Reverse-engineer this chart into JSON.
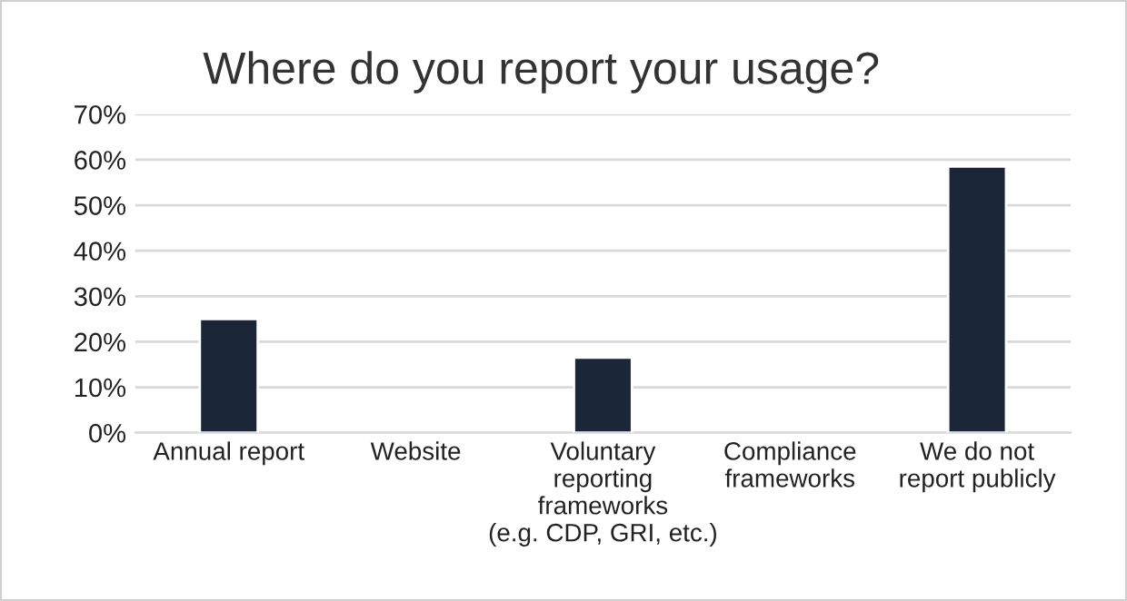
{
  "chart_data": {
    "type": "bar",
    "title": "Where do you report your usage?",
    "categories": [
      "Annual report",
      "Website",
      "Voluntary\nreporting\nframeworks\n(e.g. CDP, GRI, etc.)",
      "Compliance\nframeworks",
      "We do not\nreport publicly"
    ],
    "values": [
      25,
      null,
      16.5,
      null,
      58.5
    ],
    "color": "#1c2639",
    "ylim": [
      0,
      70
    ],
    "yticks": [
      {
        "value": 0,
        "label": "0%"
      },
      {
        "value": 10,
        "label": "10%"
      },
      {
        "value": 20,
        "label": "20%"
      },
      {
        "value": 30,
        "label": "30%"
      },
      {
        "value": 40,
        "label": "40%"
      },
      {
        "value": 50,
        "label": "50%"
      },
      {
        "value": 60,
        "label": "60%"
      },
      {
        "value": 70,
        "label": "70%"
      }
    ],
    "grid": "y",
    "legend": false
  }
}
